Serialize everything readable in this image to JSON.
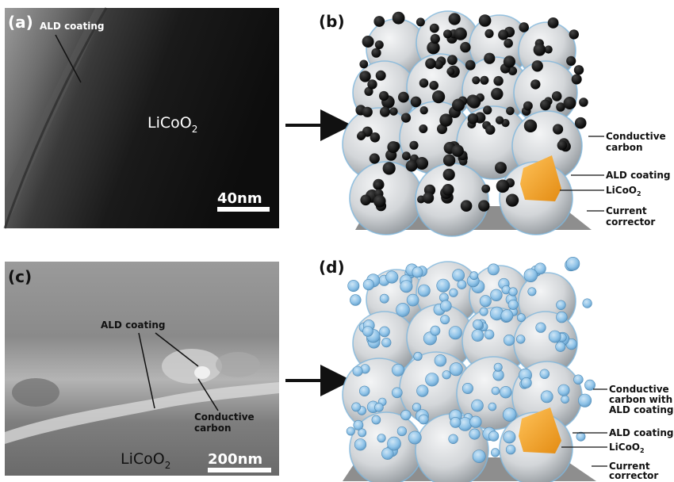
{
  "panels": {
    "a": {
      "label": "(a)",
      "coating_label": "ALD coating",
      "material_label": "LiCoO",
      "material_sub": "2",
      "scale_bar": "40nm"
    },
    "b": {
      "label": "(b)",
      "callouts": {
        "conductive": [
          "Conductive",
          "carbon"
        ],
        "ald": "ALD coating",
        "licoo": "LiCoO",
        "licoo_sub": "2",
        "current": [
          "Current",
          "corrector"
        ]
      }
    },
    "c": {
      "label": "(c)",
      "coating_label": "ALD coating",
      "carbon_label": [
        "Conductive",
        "carbon"
      ],
      "material_label": "LiCoO",
      "material_sub": "2",
      "scale_bar": "200nm"
    },
    "d": {
      "label": "(d)",
      "callouts": {
        "conductive": [
          "Conductive",
          "carbon with",
          "ALD coating"
        ],
        "ald": "ALD coating",
        "licoo": "LiCoO",
        "licoo_sub": "2",
        "current": [
          "Current",
          "corrector"
        ]
      }
    }
  },
  "colors": {
    "sphere_light": "#ebedef",
    "sphere_dark": "#8d9398",
    "sphere_rim": "#7fb6dc",
    "core": "#f5a623",
    "substrate": "#8e8e8e",
    "carbon_black": "#0d0d0d",
    "carbon_coated": "#8fc3e8"
  }
}
